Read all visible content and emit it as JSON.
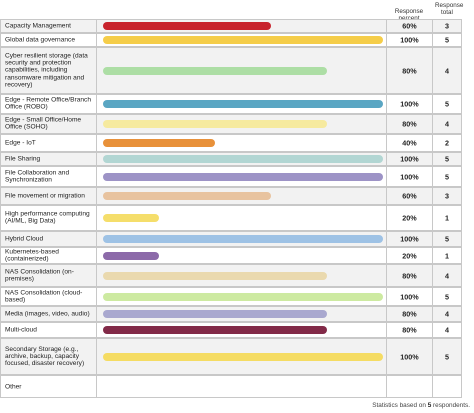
{
  "header": {
    "response_percent": "Response percent",
    "response_total": "Response total"
  },
  "chart_data": {
    "type": "bar",
    "orientation": "horizontal",
    "xlim": [
      0,
      100
    ],
    "rows": [
      {
        "label": "Capacity Management",
        "percent": 60,
        "percent_label": "60%",
        "total": "3",
        "color": "#c8232c"
      },
      {
        "label": "Global data governance",
        "percent": 100,
        "percent_label": "100%",
        "total": "5",
        "color": "#f5cd49"
      },
      {
        "label": "Cyber resilient storage (data security and protection capabilities, including ransomware mitigation and recovery)",
        "percent": 80,
        "percent_label": "80%",
        "total": "4",
        "color": "#addea5"
      },
      {
        "label": "Edge - Remote Office/Branch Office (ROBO)",
        "percent": 100,
        "percent_label": "100%",
        "total": "5",
        "color": "#5aa6c3"
      },
      {
        "label": "Edge - Small Office/Home Office (SOHO)",
        "percent": 80,
        "percent_label": "80%",
        "total": "4",
        "color": "#f6ea9f"
      },
      {
        "label": "Edge - IoT",
        "percent": 40,
        "percent_label": "40%",
        "total": "2",
        "color": "#e8913a"
      },
      {
        "label": "File Sharing",
        "percent": 100,
        "percent_label": "100%",
        "total": "5",
        "color": "#b2d6d3"
      },
      {
        "label": "File Collaboration and Synchronization",
        "percent": 100,
        "percent_label": "100%",
        "total": "5",
        "color": "#9d93c6"
      },
      {
        "label": "File movement or migration",
        "percent": 60,
        "percent_label": "60%",
        "total": "3",
        "color": "#e8c39f"
      },
      {
        "label": "High performance computing (AI/ML, Big Data)",
        "percent": 20,
        "percent_label": "20%",
        "total": "1",
        "color": "#f5de6b"
      },
      {
        "label": "Hybrid Cloud",
        "percent": 100,
        "percent_label": "100%",
        "total": "5",
        "color": "#9ec2e5"
      },
      {
        "label": "Kubernetes-based (containerized)",
        "percent": 20,
        "percent_label": "20%",
        "total": "1",
        "color": "#8c6aa9"
      },
      {
        "label": "NAS Consolidation (on-premises)",
        "percent": 80,
        "percent_label": "80%",
        "total": "4",
        "color": "#ead9ae"
      },
      {
        "label": "NAS Consolidation (cloud-based)",
        "percent": 100,
        "percent_label": "100%",
        "total": "5",
        "color": "#cdeaa1"
      },
      {
        "label": "Media (images, video, audio)",
        "percent": 80,
        "percent_label": "80%",
        "total": "4",
        "color": "#a9a8cf"
      },
      {
        "label": "Multi-cloud",
        "percent": 80,
        "percent_label": "80%",
        "total": "4",
        "color": "#822a48"
      },
      {
        "label": "Secondary Storage (e.g., archive, backup, capacity focused, disaster recovery)",
        "percent": 100,
        "percent_label": "100%",
        "total": "5",
        "color": "#f5dc63"
      },
      {
        "label": "Other",
        "percent": 0,
        "percent_label": "",
        "total": "",
        "color": "#cccccc"
      }
    ]
  },
  "footer": {
    "prefix": "Statistics based on",
    "count": "5",
    "suffix": "respondents"
  }
}
